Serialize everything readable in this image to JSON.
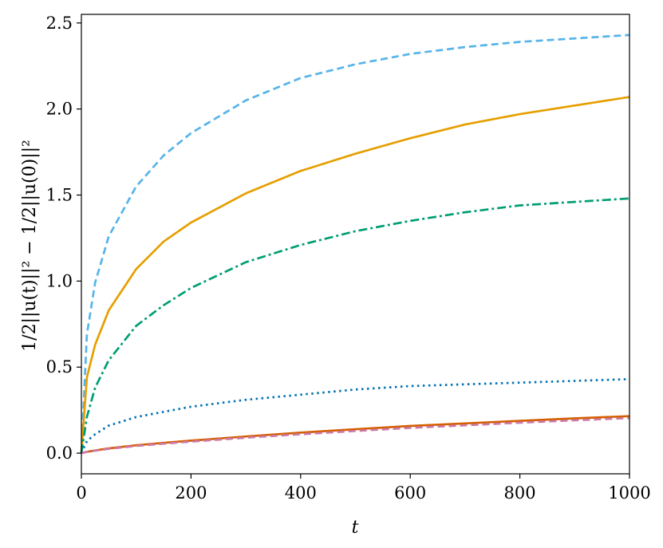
{
  "chart_data": {
    "type": "line",
    "title": "",
    "xlabel": "t",
    "ylabel": "1/2||u(t)||² − 1/2||u(0)||²",
    "xlim": [
      0,
      1000
    ],
    "ylim": [
      -0.12,
      2.55
    ],
    "xticks": [
      0,
      200,
      400,
      600,
      800,
      1000
    ],
    "xtick_labels": [
      "0",
      "200",
      "400",
      "600",
      "800",
      "1000"
    ],
    "yticks": [
      0.0,
      0.5,
      1.0,
      1.5,
      2.0,
      2.5
    ],
    "ytick_labels": [
      "0.0",
      "0.5",
      "1.0",
      "1.5",
      "2.0",
      "2.5"
    ],
    "grid": false,
    "legend": "none",
    "x": [
      0,
      10,
      25,
      50,
      100,
      150,
      200,
      300,
      400,
      500,
      600,
      700,
      800,
      900,
      1000
    ],
    "series": [
      {
        "color": "#56B4E9",
        "dash": "dashed",
        "values": [
          0,
          0.69,
          0.99,
          1.26,
          1.55,
          1.73,
          1.86,
          2.05,
          2.18,
          2.26,
          2.32,
          2.36,
          2.39,
          2.41,
          2.43
        ]
      },
      {
        "color": "#E69F00",
        "dash": "solid",
        "values": [
          0,
          0.44,
          0.63,
          0.83,
          1.07,
          1.23,
          1.34,
          1.51,
          1.64,
          1.74,
          1.83,
          1.91,
          1.97,
          2.02,
          2.07
        ]
      },
      {
        "color": "#009E73",
        "dash": "dashdot",
        "values": [
          0,
          0.21,
          0.38,
          0.54,
          0.74,
          0.86,
          0.96,
          1.11,
          1.21,
          1.29,
          1.35,
          1.4,
          1.44,
          1.46,
          1.48
        ]
      },
      {
        "color": "#0072B2",
        "dash": "dotted",
        "values": [
          0,
          0.07,
          0.11,
          0.16,
          0.21,
          0.24,
          0.27,
          0.31,
          0.34,
          0.37,
          0.39,
          0.4,
          0.41,
          0.42,
          0.43
        ]
      },
      {
        "color": "#D55E00",
        "dash": "solid",
        "values": [
          0,
          0.008,
          0.016,
          0.028,
          0.046,
          0.06,
          0.073,
          0.097,
          0.119,
          0.139,
          0.158,
          0.173,
          0.188,
          0.202,
          0.215
        ]
      },
      {
        "color": "#CC79A7",
        "dash": "dashed",
        "values": [
          0,
          0.007,
          0.014,
          0.025,
          0.042,
          0.055,
          0.067,
          0.09,
          0.11,
          0.129,
          0.147,
          0.162,
          0.177,
          0.191,
          0.204
        ]
      }
    ]
  }
}
